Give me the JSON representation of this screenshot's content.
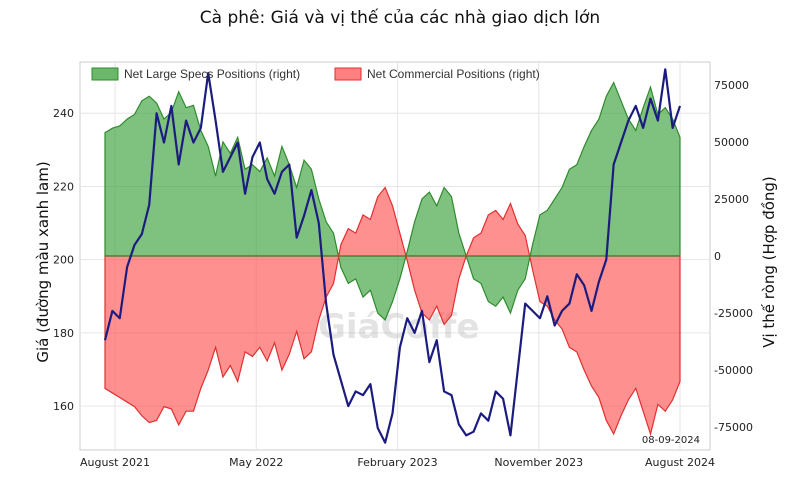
{
  "chart_data": {
    "type": "line",
    "title": "Cà phê: Giá và vị thế của các nhà giao dịch lớn",
    "ylabel_left": "Giá (đường màu xanh lam)",
    "ylabel_right": "Vị thế ròng (Hợp đồng)",
    "ylim_left": [
      148,
      254
    ],
    "ylim_right": [
      -85000,
      85000
    ],
    "yticks_left": [
      "160",
      "180",
      "200",
      "220",
      "240"
    ],
    "yticks_right": [
      "75000",
      "50000",
      "25000",
      "0",
      "-25000",
      "-50000",
      "-75000"
    ],
    "xtick_labels": [
      "August 2021",
      "May 2022",
      "February 2023",
      "November 2023",
      "August 2024"
    ],
    "date_stamp": "08-09-2024",
    "watermark": "GiáCoffe",
    "legend": {
      "placement": "top-left",
      "entries": [
        {
          "label": "Net Large Specs Positions (right)",
          "color": "#3aa03a"
        },
        {
          "label": "Net Commercial Positions (right)",
          "color": "#ff5555"
        }
      ]
    },
    "grid": true,
    "x": [
      0,
      2,
      4,
      6,
      8,
      10,
      12,
      14,
      16,
      18,
      20,
      22,
      24,
      26,
      28,
      30,
      32,
      34,
      36,
      38,
      40,
      42,
      44,
      46,
      48,
      50,
      52,
      54,
      56,
      58,
      60,
      62,
      64,
      66,
      68,
      70,
      72,
      74,
      76,
      78,
      80,
      82,
      84,
      86,
      88,
      90,
      92,
      94,
      96,
      98,
      100,
      102,
      104,
      106,
      108,
      110,
      112,
      114,
      116,
      118,
      120,
      122,
      124,
      126,
      128,
      130,
      132,
      134,
      136,
      138,
      140,
      142,
      144,
      146,
      148,
      150,
      152,
      154,
      156
    ],
    "series": [
      {
        "name": "Net Large Specs Positions (right)",
        "axis": "right",
        "color": "#3aa03a",
        "values": [
          54000,
          56000,
          57000,
          60000,
          62000,
          68000,
          70000,
          67000,
          60000,
          63000,
          72000,
          65000,
          66000,
          55000,
          48000,
          35000,
          50000,
          45000,
          52000,
          38000,
          40000,
          37000,
          43000,
          35000,
          48000,
          40000,
          30000,
          42000,
          38000,
          25000,
          15000,
          10000,
          -5000,
          -12000,
          -10000,
          -18000,
          -15000,
          -25000,
          -28000,
          -20000,
          -10000,
          2000,
          15000,
          25000,
          28000,
          22000,
          30000,
          26000,
          10000,
          0,
          -10000,
          -12000,
          -20000,
          -22000,
          -18000,
          -25000,
          -15000,
          -10000,
          5000,
          18000,
          20000,
          25000,
          30000,
          38000,
          40000,
          48000,
          55000,
          60000,
          70000,
          76000,
          68000,
          60000,
          55000,
          65000,
          74000,
          62000,
          65000,
          60000,
          52000
        ]
      },
      {
        "name": "Net Commercial Positions (right)",
        "axis": "right",
        "color": "#ff5555",
        "values": [
          -58000,
          -60000,
          -62000,
          -64000,
          -66000,
          -70000,
          -73000,
          -72000,
          -66000,
          -67000,
          -74000,
          -68000,
          -68000,
          -58000,
          -50000,
          -40000,
          -53000,
          -48000,
          -55000,
          -42000,
          -44000,
          -40000,
          -46000,
          -38000,
          -50000,
          -43000,
          -33000,
          -45000,
          -42000,
          -28000,
          -18000,
          -12000,
          5000,
          12000,
          10000,
          18000,
          16000,
          26000,
          30000,
          22000,
          10000,
          -2000,
          -15000,
          -25000,
          -28000,
          -22000,
          -30000,
          -26000,
          -10000,
          0,
          8000,
          10000,
          18000,
          20000,
          16000,
          23000,
          14000,
          9000,
          -6000,
          -20000,
          -22000,
          -28000,
          -32000,
          -40000,
          -42000,
          -50000,
          -57000,
          -62000,
          -72000,
          -78000,
          -70000,
          -63000,
          -58000,
          -68000,
          -78000,
          -65000,
          -68000,
          -63000,
          -55000
        ]
      },
      {
        "name": "",
        "axis": "left",
        "color": "#1c1c80",
        "values": [
          178,
          186,
          184,
          198,
          204,
          207,
          215,
          240,
          232,
          242,
          226,
          238,
          232,
          236,
          251,
          238,
          224,
          228,
          232,
          218,
          228,
          232,
          222,
          218,
          224,
          226,
          206,
          212,
          219,
          210,
          188,
          174,
          167,
          160,
          164,
          163,
          166,
          154,
          150,
          158,
          176,
          184,
          180,
          186,
          172,
          178,
          164,
          163,
          155,
          152,
          153,
          158,
          156,
          164,
          162,
          152,
          170,
          188,
          186,
          184,
          190,
          182,
          186,
          188,
          196,
          193,
          186,
          194,
          200,
          226,
          232,
          238,
          242,
          236,
          244,
          238,
          252,
          236,
          242
        ]
      }
    ]
  }
}
